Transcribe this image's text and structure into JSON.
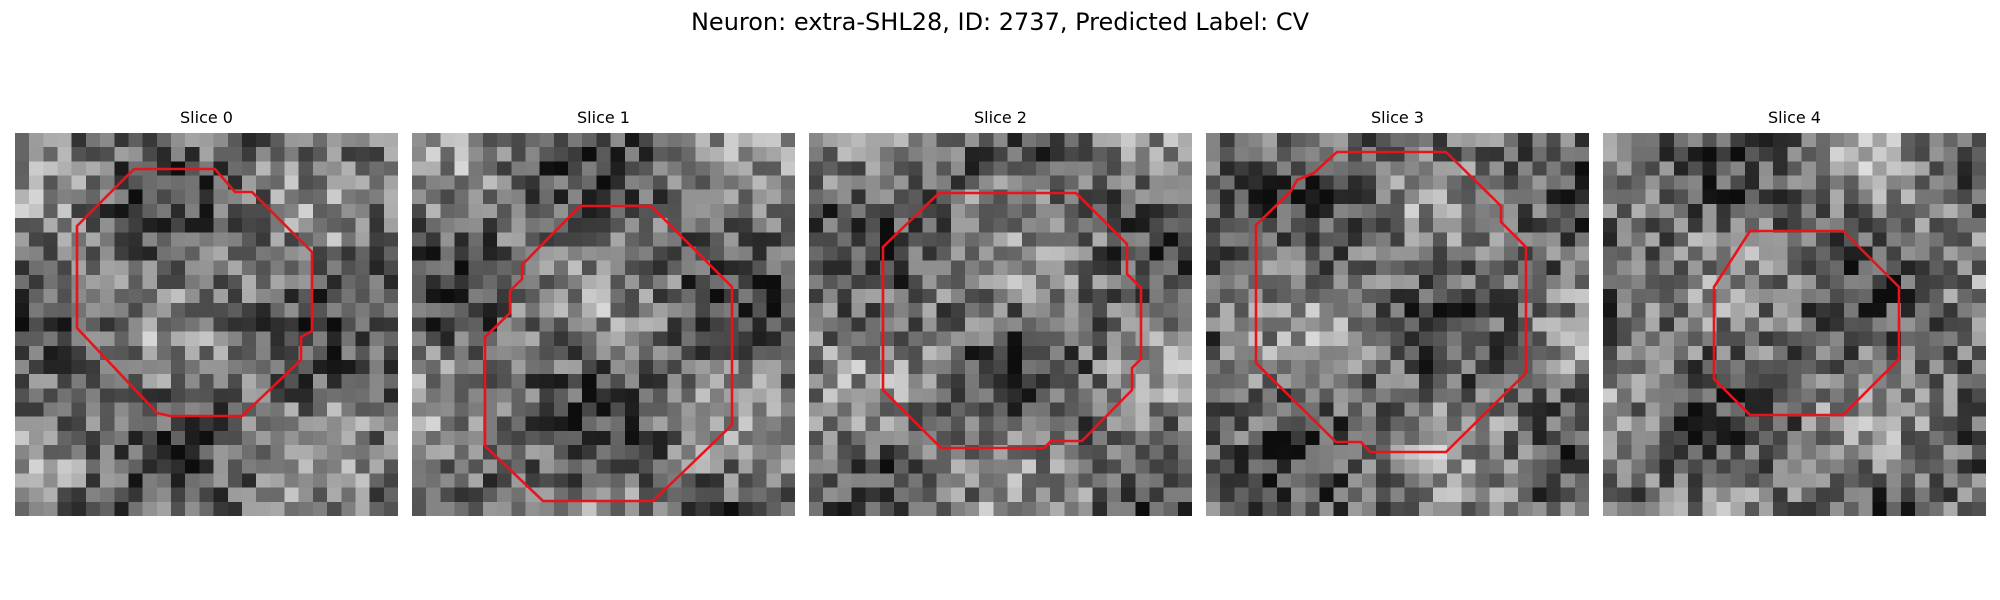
{
  "figure": {
    "title": "Neuron: extra-SHL28, ID: 2737, Predicted Label: CV"
  },
  "colors": {
    "contour": "#e8141c",
    "background": "#ffffff"
  },
  "panels": [
    {
      "title": "Slice 0"
    },
    {
      "title": "Slice 1"
    },
    {
      "title": "Slice 2"
    },
    {
      "title": "Slice 3"
    },
    {
      "title": "Slice 4"
    }
  ]
}
